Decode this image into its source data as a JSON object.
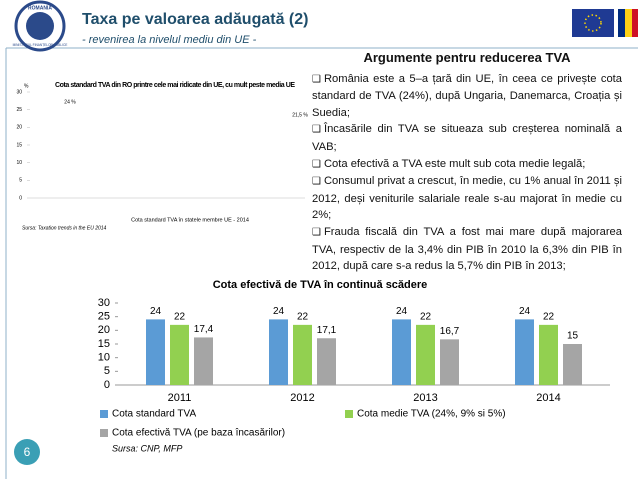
{
  "logo": {
    "top": "ROMANIA",
    "bottom": "MINISTERUL FINANȚELOR PUBLICE"
  },
  "header": {
    "title": "Taxa pe valoarea adăugată (2)",
    "subtitle": "- revenirea la nivelul mediu din UE -"
  },
  "arguments": {
    "heading": "Argumente pentru reducerea TVA",
    "items": [
      "România este a 5–a țară din UE, în ceea ce privește cota standard de TVA (24%), după Ungaria, Danemarca, Croația și Suedia;",
      "Încasările din TVA se situeaza sub creșterea nominală a VAB;",
      "Cota efectivă a TVA este mult sub cota medie legală;",
      "Consumul privat a crescut, în medie, cu 1% anual în 2011 și 2012, deși veniturile salariale reale s-au majorat în medie cu 2%;",
      "Frauda fiscală din TVA a fost mai mare după majorarea TVA, respectiv de la 3,4% din PIB în 2010 la 6,3% din PIB în 2012, după care s-a redus la 5,7% din PIB în 2013;"
    ]
  },
  "page_number": "6",
  "chart_data": [
    {
      "type": "bar",
      "title": "Cota standard TVA din RO printre cele mai ridicate din UE, cu mult peste media UE",
      "ylabel": "%",
      "xlabel": "Cota standard TVA în statele membre UE - 2014",
      "source": "Sursa: Taxation trends in the EU 2014",
      "annotations": [
        "24 %",
        "21,5 %"
      ],
      "ylim": [
        0,
        30
      ],
      "yticks": [
        0,
        5,
        10,
        15,
        20,
        25,
        30
      ]
    },
    {
      "type": "bar",
      "title": "Cota efectivă de TVA în continuă scădere",
      "categories": [
        "2011",
        "2012",
        "2013",
        "2014"
      ],
      "series": [
        {
          "name": "Cota standard TVA",
          "color": "#5b9bd5",
          "values": [
            24,
            24,
            24,
            24
          ]
        },
        {
          "name": "Cota medie TVA (24%, 9% si 5%)",
          "color": "#92d050",
          "values": [
            22,
            22,
            22,
            22
          ]
        },
        {
          "name": "Cota efectivă TVA (pe baza încasărilor)",
          "color": "#a5a5a5",
          "values": [
            17.4,
            17.1,
            16.7,
            15
          ],
          "value_labels": [
            "17,4",
            "17,1",
            "16,7",
            "15"
          ]
        }
      ],
      "ylim": [
        0,
        30
      ],
      "yticks": [
        0,
        5,
        10,
        15,
        20,
        25,
        30
      ],
      "legend": "bottom",
      "source": "Sursa: CNP, MFP"
    }
  ]
}
